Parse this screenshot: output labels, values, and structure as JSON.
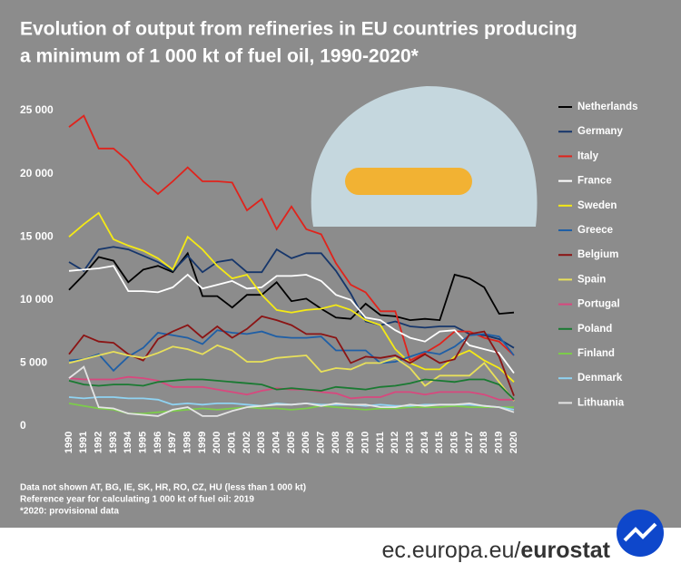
{
  "chart_data": {
    "type": "line",
    "title": [
      "Evolution of output from refineries in EU countries producing",
      "a minimum of 1 000 kt of fuel oil, 1990-2020*"
    ],
    "categories": [
      "1990",
      "1991",
      "1992",
      "1993",
      "1994",
      "1995",
      "1996",
      "1997",
      "1998",
      "1999",
      "2000",
      "2001",
      "2002",
      "2003",
      "2004",
      "2005",
      "2006",
      "2007",
      "2008",
      "2009",
      "2010",
      "2011",
      "2012",
      "2013",
      "2014",
      "2015",
      "2016",
      "2017",
      "2018",
      "2019",
      "2020"
    ],
    "ylim": [
      0,
      25000
    ],
    "yticks": [
      0,
      {
        "value": 5000,
        "label": "5 000"
      },
      {
        "value": 10000,
        "label": "10 000"
      },
      {
        "value": 15000,
        "label": "15 000"
      },
      {
        "value": 20000,
        "label": "20 000"
      },
      {
        "value": 25000,
        "label": "25 000"
      }
    ],
    "grid": false,
    "legend": "right",
    "series": [
      {
        "name": "Netherlands",
        "color": "#000000",
        "values": [
          10800,
          12000,
          13400,
          13100,
          11400,
          12400,
          12700,
          12200,
          13700,
          10300,
          10300,
          9400,
          10400,
          10400,
          11400,
          9900,
          10100,
          9300,
          8600,
          8500,
          9700,
          8800,
          8700,
          8400,
          8500,
          8400,
          12000,
          11700,
          11000,
          8900,
          9000
        ]
      },
      {
        "name": "Germany",
        "color": "#16366b",
        "values": [
          13000,
          12300,
          14000,
          14200,
          14000,
          13500,
          13000,
          12300,
          13500,
          12200,
          13000,
          13200,
          12200,
          12200,
          14000,
          13300,
          13700,
          13700,
          12300,
          10500,
          8300,
          8000,
          8300,
          7900,
          7800,
          7900,
          7900,
          7300,
          7200,
          6900,
          6200
        ]
      },
      {
        "name": "Italy",
        "color": "#e0231c",
        "values": [
          23700,
          24600,
          22000,
          22000,
          21000,
          19400,
          18400,
          19400,
          20500,
          19400,
          19400,
          19300,
          17100,
          18000,
          15600,
          17400,
          15600,
          15200,
          12900,
          11200,
          10600,
          9100,
          9100,
          5200,
          5800,
          6500,
          7500,
          7500,
          7000,
          6700,
          5600
        ]
      },
      {
        "name": "France",
        "color": "#ffffff",
        "values": [
          12300,
          12400,
          12500,
          12700,
          10700,
          10700,
          10600,
          11000,
          12000,
          10900,
          11200,
          11500,
          10900,
          11000,
          11900,
          11900,
          12000,
          11500,
          10400,
          10000,
          8600,
          8400,
          7600,
          7000,
          6700,
          7500,
          7600,
          6400,
          6100,
          5800,
          4200
        ]
      },
      {
        "name": "Sweden",
        "color": "#f5ea14",
        "values": [
          15000,
          16000,
          16900,
          14800,
          14300,
          13900,
          13300,
          12400,
          15000,
          14000,
          12700,
          11700,
          12000,
          10400,
          9200,
          9000,
          9200,
          9300,
          9600,
          9200,
          8400,
          8000,
          6100,
          5000,
          4500,
          4500,
          5500,
          6000,
          5200,
          4600,
          3500
        ]
      },
      {
        "name": "Greece",
        "color": "#1f5fa6",
        "values": [
          5200,
          5300,
          5700,
          4400,
          5500,
          6200,
          7400,
          7200,
          7000,
          6500,
          7600,
          7400,
          7300,
          7500,
          7100,
          7000,
          7000,
          7100,
          6000,
          6000,
          6000,
          5000,
          5100,
          5500,
          5900,
          5700,
          6300,
          7200,
          7300,
          7100,
          5600
        ]
      },
      {
        "name": "Belgium",
        "color": "#8b1414",
        "values": [
          5700,
          7200,
          6700,
          6600,
          5700,
          5200,
          6900,
          7500,
          8000,
          7000,
          7900,
          7000,
          7700,
          8700,
          8400,
          8000,
          7300,
          7300,
          7000,
          5000,
          5500,
          5400,
          5600,
          5000,
          5700,
          5000,
          5300,
          7300,
          7500,
          5500,
          2400
        ]
      },
      {
        "name": "Spain",
        "color": "#e8e05a",
        "values": [
          5000,
          5300,
          5600,
          5900,
          5600,
          5400,
          5800,
          6300,
          6100,
          5700,
          6400,
          6000,
          5100,
          5100,
          5400,
          5500,
          5600,
          4300,
          4600,
          4500,
          5000,
          5000,
          5400,
          4600,
          3200,
          4000,
          4000,
          4000,
          5000,
          3500,
          2000
        ]
      },
      {
        "name": "Portugal",
        "color": "#d8487e",
        "values": [
          3800,
          3700,
          3700,
          3700,
          3900,
          3800,
          3600,
          3100,
          3100,
          3100,
          2900,
          2700,
          2500,
          2800,
          3000,
          2900,
          2900,
          2700,
          2600,
          2200,
          2300,
          2300,
          2700,
          2700,
          2500,
          2700,
          2700,
          2700,
          2500,
          2100,
          2100
        ]
      },
      {
        "name": "Poland",
        "color": "#1a7a32",
        "values": [
          3600,
          3300,
          3200,
          3300,
          3300,
          3200,
          3500,
          3600,
          3700,
          3700,
          3600,
          3500,
          3400,
          3300,
          2900,
          3000,
          2900,
          2800,
          3100,
          3000,
          2900,
          3100,
          3200,
          3400,
          3700,
          3600,
          3500,
          3700,
          3700,
          3300,
          2100
        ]
      },
      {
        "name": "Finland",
        "color": "#7ccc4a",
        "values": [
          1800,
          1600,
          1400,
          1300,
          1000,
          1000,
          1100,
          1200,
          1300,
          1400,
          1300,
          1400,
          1500,
          1400,
          1400,
          1300,
          1400,
          1600,
          1500,
          1400,
          1300,
          1400,
          1400,
          1500,
          1500,
          1500,
          1600,
          1500,
          1500,
          1500,
          1500
        ]
      },
      {
        "name": "Denmark",
        "color": "#8fd3f2",
        "values": [
          2300,
          2200,
          2300,
          2300,
          2200,
          2200,
          2100,
          1700,
          1800,
          1700,
          1800,
          1800,
          1700,
          1600,
          1800,
          1700,
          1800,
          1700,
          1700,
          1700,
          1600,
          1700,
          1600,
          1600,
          1700,
          1700,
          1700,
          1700,
          1600,
          1500,
          1300
        ]
      },
      {
        "name": "Lithuania",
        "color": "#e4e4e4",
        "values": [
          3800,
          4700,
          1500,
          1400,
          1000,
          900,
          800,
          1300,
          1500,
          800,
          800,
          1200,
          1500,
          1600,
          1700,
          1700,
          1800,
          1600,
          1800,
          1700,
          1700,
          1500,
          1500,
          1700,
          1600,
          1700,
          1700,
          1800,
          1600,
          1500,
          1100
        ]
      }
    ],
    "notes": [
      "Data not shown AT, BG, IE, SK, HR, RO, CZ, HU (less than 1 000 kt)",
      "Reference year for calculating 1 000 kt of fuel oil: 2019",
      "*2020: provisional data"
    ]
  },
  "footer": {
    "site": "ec.europa.eu/",
    "brand": "eurostat"
  }
}
